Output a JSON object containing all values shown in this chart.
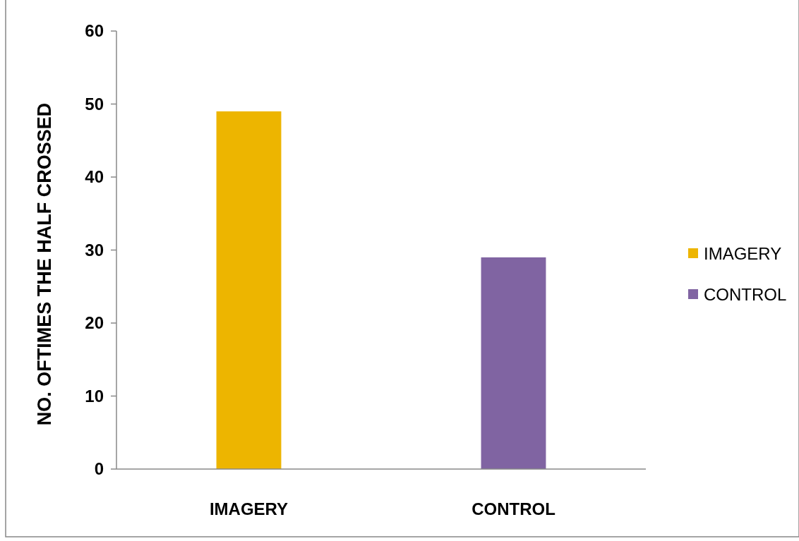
{
  "chart_data": {
    "type": "bar",
    "ylabel": "NO. OFTIMES THE HALF CROSSED",
    "categories": [
      "IMAGERY",
      "CONTROL"
    ],
    "series": [
      {
        "name": "IMAGERY",
        "color": "#edb500",
        "values": [
          49,
          null
        ]
      },
      {
        "name": "CONTROL",
        "color": "#8064a2",
        "values": [
          null,
          29
        ]
      }
    ],
    "ylim": [
      0,
      60
    ],
    "yticks": [
      0,
      10,
      20,
      30,
      40,
      50,
      60
    ],
    "grid": false,
    "legend": "right"
  }
}
